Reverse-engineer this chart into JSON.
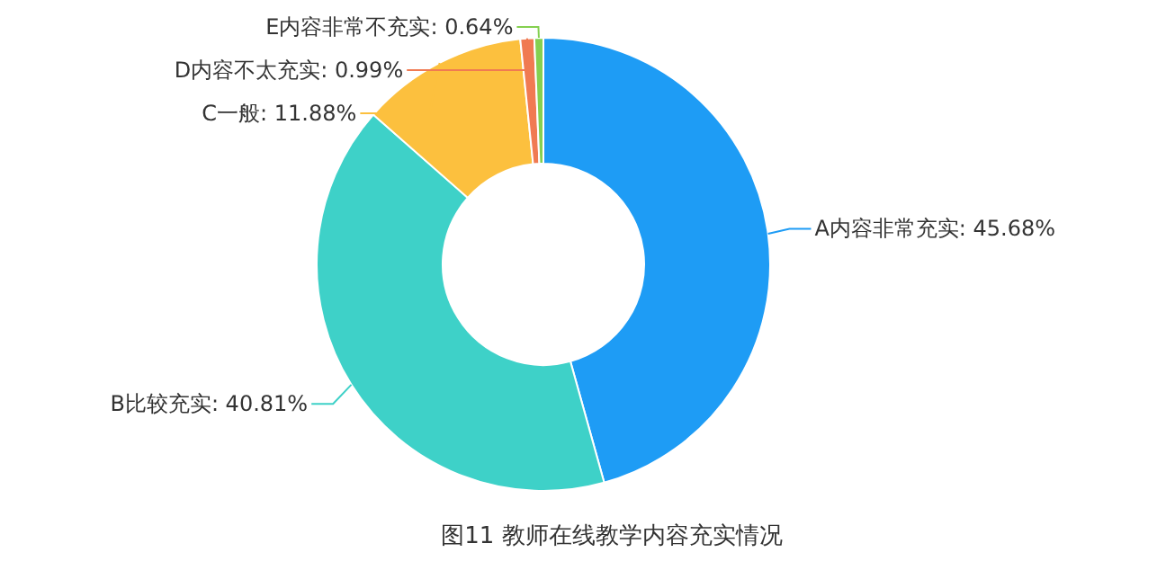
{
  "chart_data": {
    "type": "donut",
    "title": "图11 教师在线教学内容充实情况",
    "categories": [
      "A内容非常充实",
      "B比较充实",
      "C一般",
      "D内容不太充实",
      "E内容非常不充实"
    ],
    "values": [
      45.68,
      40.81,
      11.88,
      0.99,
      0.64
    ],
    "value_labels": [
      "45.68%",
      "40.81%",
      "11.88%",
      "0.99%",
      "0.64%"
    ],
    "colors": [
      "#1e9cf5",
      "#3ed1c8",
      "#fcc03e",
      "#f07a52",
      "#84d050"
    ],
    "legend": false
  }
}
